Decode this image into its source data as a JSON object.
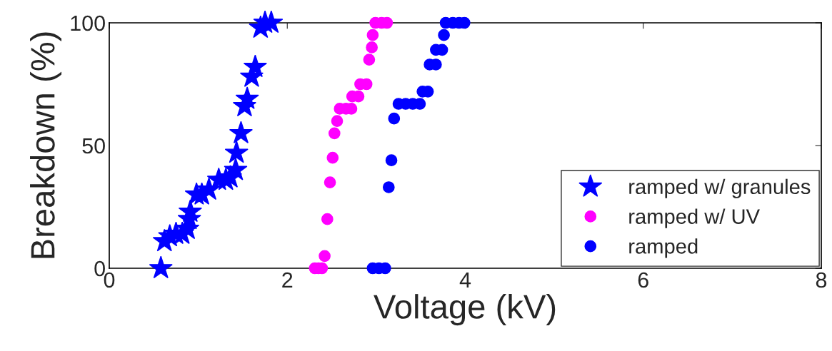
{
  "chart_data": {
    "type": "scatter",
    "xlabel": "Voltage (kV)",
    "ylabel": "Breakdown (%)",
    "xlim": [
      0,
      8
    ],
    "ylim": [
      0,
      100
    ],
    "xticks": [
      0,
      2,
      4,
      6,
      8
    ],
    "yticks": [
      0,
      50,
      100
    ],
    "grid": false,
    "legend": "bottom right",
    "series": [
      {
        "name": "ramped w/ granules",
        "color": "#0000ff",
        "marker": "star",
        "x": [
          0.58,
          0.62,
          0.68,
          0.75,
          0.82,
          0.88,
          0.9,
          0.91,
          0.98,
          1.04,
          1.12,
          1.23,
          1.31,
          1.36,
          1.42,
          1.43,
          1.48,
          1.52,
          1.55,
          1.6,
          1.64,
          1.7,
          1.75,
          1.82
        ],
        "values": [
          0,
          11,
          13,
          14,
          14,
          16,
          20,
          23,
          30,
          30,
          32,
          36,
          36,
          37,
          40,
          47,
          55,
          66,
          69,
          78,
          82,
          98,
          100,
          100
        ]
      },
      {
        "name": "ramped w/ UV",
        "color": "#ff00ff",
        "marker": "circle",
        "x": [
          2.31,
          2.35,
          2.39,
          2.42,
          2.45,
          2.48,
          2.51,
          2.53,
          2.56,
          2.59,
          2.66,
          2.72,
          2.73,
          2.8,
          2.82,
          2.89,
          2.92,
          2.95,
          2.96,
          2.99,
          3.06,
          3.12
        ],
        "values": [
          0,
          0,
          0,
          5,
          20,
          35,
          45,
          55,
          60,
          65,
          65,
          65,
          70,
          70,
          75,
          75,
          85,
          90,
          95,
          100,
          100,
          100
        ]
      },
      {
        "name": "ramped",
        "color": "#0000ff",
        "marker": "circle",
        "x": [
          2.96,
          3.03,
          3.1,
          3.14,
          3.17,
          3.2,
          3.25,
          3.33,
          3.41,
          3.49,
          3.52,
          3.58,
          3.6,
          3.67,
          3.67,
          3.74,
          3.76,
          3.78,
          3.86,
          3.93,
          3.99
        ],
        "values": [
          0,
          0,
          0,
          33,
          44,
          61,
          67,
          67,
          67,
          67,
          72,
          72,
          83,
          83,
          89,
          89,
          95,
          100,
          100,
          100,
          100
        ]
      }
    ]
  }
}
